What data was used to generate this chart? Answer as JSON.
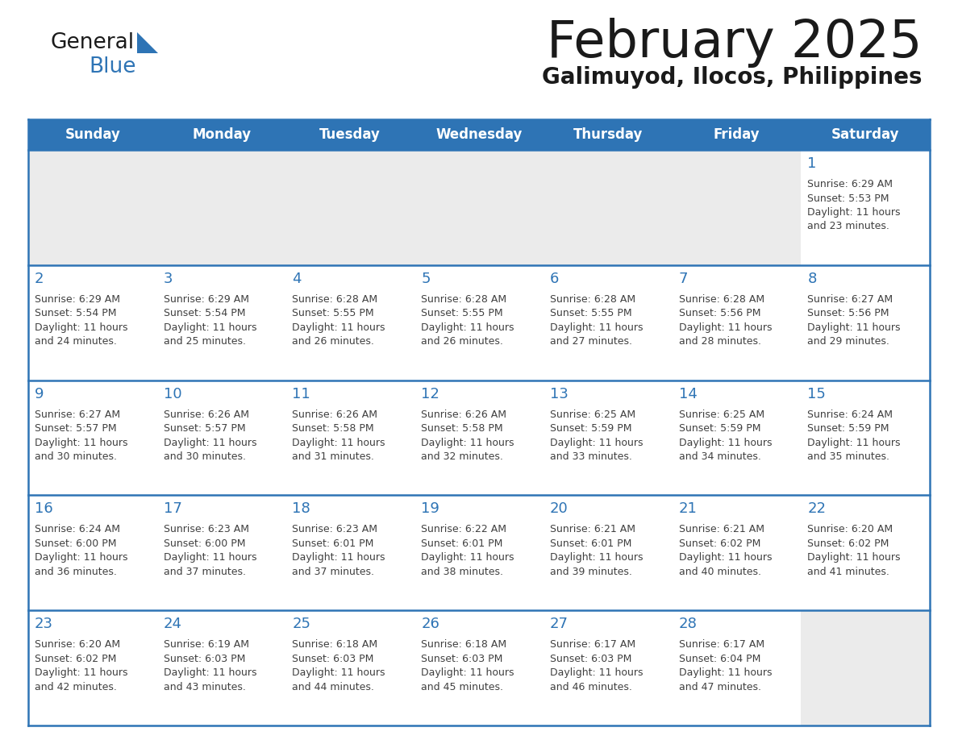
{
  "title": "February 2025",
  "subtitle": "Galimuyod, Ilocos, Philippines",
  "header_bg": "#2E74B5",
  "header_text_color": "#FFFFFF",
  "days_of_week": [
    "Sunday",
    "Monday",
    "Tuesday",
    "Wednesday",
    "Thursday",
    "Friday",
    "Saturday"
  ],
  "bg_color": "#FFFFFF",
  "separator_color": "#2E74B5",
  "day_number_color": "#2E74B5",
  "text_color": "#404040",
  "calendar_data": [
    [
      null,
      null,
      null,
      null,
      null,
      null,
      {
        "day": "1",
        "sunrise": "6:29 AM",
        "sunset": "5:53 PM",
        "daylight": "11 hours",
        "daylight2": "and 23 minutes."
      }
    ],
    [
      {
        "day": "2",
        "sunrise": "6:29 AM",
        "sunset": "5:54 PM",
        "daylight": "11 hours",
        "daylight2": "and 24 minutes."
      },
      {
        "day": "3",
        "sunrise": "6:29 AM",
        "sunset": "5:54 PM",
        "daylight": "11 hours",
        "daylight2": "and 25 minutes."
      },
      {
        "day": "4",
        "sunrise": "6:28 AM",
        "sunset": "5:55 PM",
        "daylight": "11 hours",
        "daylight2": "and 26 minutes."
      },
      {
        "day": "5",
        "sunrise": "6:28 AM",
        "sunset": "5:55 PM",
        "daylight": "11 hours",
        "daylight2": "and 26 minutes."
      },
      {
        "day": "6",
        "sunrise": "6:28 AM",
        "sunset": "5:55 PM",
        "daylight": "11 hours",
        "daylight2": "and 27 minutes."
      },
      {
        "day": "7",
        "sunrise": "6:28 AM",
        "sunset": "5:56 PM",
        "daylight": "11 hours",
        "daylight2": "and 28 minutes."
      },
      {
        "day": "8",
        "sunrise": "6:27 AM",
        "sunset": "5:56 PM",
        "daylight": "11 hours",
        "daylight2": "and 29 minutes."
      }
    ],
    [
      {
        "day": "9",
        "sunrise": "6:27 AM",
        "sunset": "5:57 PM",
        "daylight": "11 hours",
        "daylight2": "and 30 minutes."
      },
      {
        "day": "10",
        "sunrise": "6:26 AM",
        "sunset": "5:57 PM",
        "daylight": "11 hours",
        "daylight2": "and 30 minutes."
      },
      {
        "day": "11",
        "sunrise": "6:26 AM",
        "sunset": "5:58 PM",
        "daylight": "11 hours",
        "daylight2": "and 31 minutes."
      },
      {
        "day": "12",
        "sunrise": "6:26 AM",
        "sunset": "5:58 PM",
        "daylight": "11 hours",
        "daylight2": "and 32 minutes."
      },
      {
        "day": "13",
        "sunrise": "6:25 AM",
        "sunset": "5:59 PM",
        "daylight": "11 hours",
        "daylight2": "and 33 minutes."
      },
      {
        "day": "14",
        "sunrise": "6:25 AM",
        "sunset": "5:59 PM",
        "daylight": "11 hours",
        "daylight2": "and 34 minutes."
      },
      {
        "day": "15",
        "sunrise": "6:24 AM",
        "sunset": "5:59 PM",
        "daylight": "11 hours",
        "daylight2": "and 35 minutes."
      }
    ],
    [
      {
        "day": "16",
        "sunrise": "6:24 AM",
        "sunset": "6:00 PM",
        "daylight": "11 hours",
        "daylight2": "and 36 minutes."
      },
      {
        "day": "17",
        "sunrise": "6:23 AM",
        "sunset": "6:00 PM",
        "daylight": "11 hours",
        "daylight2": "and 37 minutes."
      },
      {
        "day": "18",
        "sunrise": "6:23 AM",
        "sunset": "6:01 PM",
        "daylight": "11 hours",
        "daylight2": "and 37 minutes."
      },
      {
        "day": "19",
        "sunrise": "6:22 AM",
        "sunset": "6:01 PM",
        "daylight": "11 hours",
        "daylight2": "and 38 minutes."
      },
      {
        "day": "20",
        "sunrise": "6:21 AM",
        "sunset": "6:01 PM",
        "daylight": "11 hours",
        "daylight2": "and 39 minutes."
      },
      {
        "day": "21",
        "sunrise": "6:21 AM",
        "sunset": "6:02 PM",
        "daylight": "11 hours",
        "daylight2": "and 40 minutes."
      },
      {
        "day": "22",
        "sunrise": "6:20 AM",
        "sunset": "6:02 PM",
        "daylight": "11 hours",
        "daylight2": "and 41 minutes."
      }
    ],
    [
      {
        "day": "23",
        "sunrise": "6:20 AM",
        "sunset": "6:02 PM",
        "daylight": "11 hours",
        "daylight2": "and 42 minutes."
      },
      {
        "day": "24",
        "sunrise": "6:19 AM",
        "sunset": "6:03 PM",
        "daylight": "11 hours",
        "daylight2": "and 43 minutes."
      },
      {
        "day": "25",
        "sunrise": "6:18 AM",
        "sunset": "6:03 PM",
        "daylight": "11 hours",
        "daylight2": "and 44 minutes."
      },
      {
        "day": "26",
        "sunrise": "6:18 AM",
        "sunset": "6:03 PM",
        "daylight": "11 hours",
        "daylight2": "and 45 minutes."
      },
      {
        "day": "27",
        "sunrise": "6:17 AM",
        "sunset": "6:03 PM",
        "daylight": "11 hours",
        "daylight2": "and 46 minutes."
      },
      {
        "day": "28",
        "sunrise": "6:17 AM",
        "sunset": "6:04 PM",
        "daylight": "11 hours",
        "daylight2": "and 47 minutes."
      },
      null
    ]
  ]
}
